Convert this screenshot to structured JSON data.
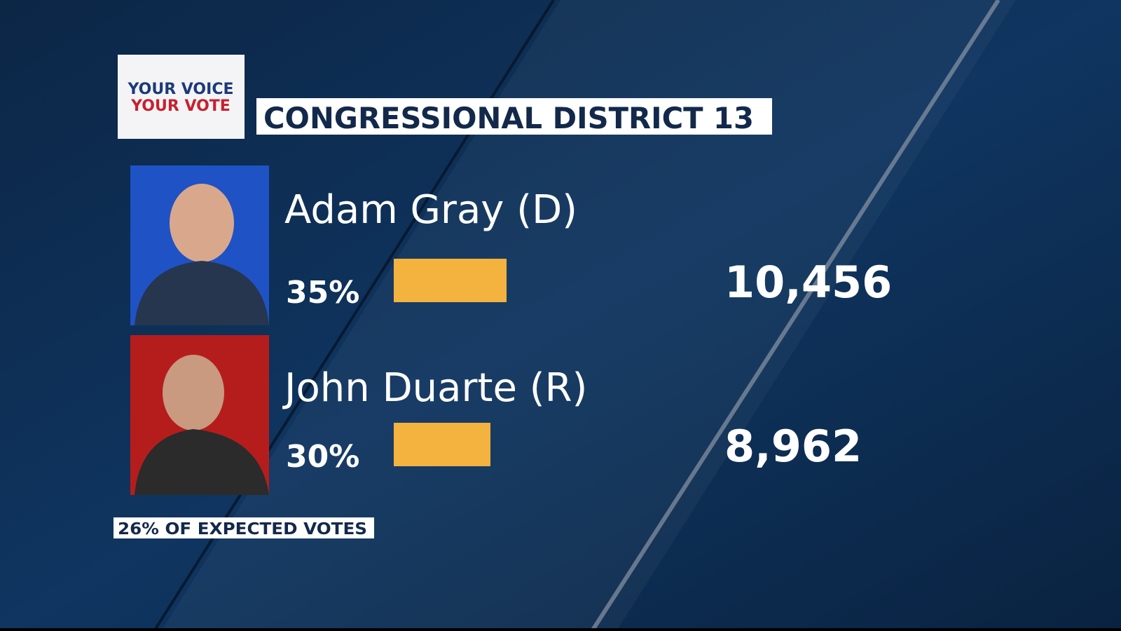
{
  "logo": {
    "line1": "YOUR VOICE",
    "line2": "YOUR VOTE"
  },
  "title": "CONGRESSIONAL DISTRICT 13",
  "candidates": [
    {
      "name": "Adam Gray (D)",
      "percent": {
        "value": 35,
        "label": "35%"
      },
      "votes": "10,456"
    },
    {
      "name": "John Duarte (R)",
      "percent": {
        "value": 30,
        "label": "30%"
      },
      "votes": "8,962"
    }
  ],
  "footer": "26% OF EXPECTED VOTES"
}
